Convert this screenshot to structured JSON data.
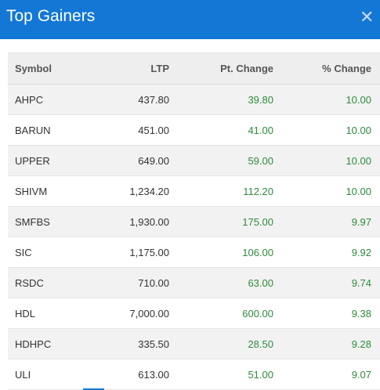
{
  "header": {
    "title": "Top Gainers",
    "close_icon": "close-icon",
    "background_color": "#1377d6"
  },
  "table": {
    "columns": [
      "Symbol",
      "LTP",
      "Pt. Change",
      "% Change"
    ],
    "positive_color": "#2e8b3c",
    "rows": [
      {
        "symbol": "AHPC",
        "ltp": "437.80",
        "pt_change": "39.80",
        "pct_change": "10.00"
      },
      {
        "symbol": "BARUN",
        "ltp": "451.00",
        "pt_change": "41.00",
        "pct_change": "10.00"
      },
      {
        "symbol": "UPPER",
        "ltp": "649.00",
        "pt_change": "59.00",
        "pct_change": "10.00"
      },
      {
        "symbol": "SHIVM",
        "ltp": "1,234.20",
        "pt_change": "112.20",
        "pct_change": "10.00"
      },
      {
        "symbol": "SMFBS",
        "ltp": "1,930.00",
        "pt_change": "175.00",
        "pct_change": "9.97"
      },
      {
        "symbol": "SIC",
        "ltp": "1,175.00",
        "pt_change": "106.00",
        "pct_change": "9.92"
      },
      {
        "symbol": "RSDC",
        "ltp": "710.00",
        "pt_change": "63.00",
        "pct_change": "9.74"
      },
      {
        "symbol": "HDL",
        "ltp": "7,000.00",
        "pt_change": "600.00",
        "pct_change": "9.38"
      },
      {
        "symbol": "HDHPC",
        "ltp": "335.50",
        "pt_change": "28.50",
        "pct_change": "9.28"
      },
      {
        "symbol": "ULI",
        "ltp": "613.00",
        "pt_change": "51.00",
        "pct_change": "9.07"
      }
    ]
  }
}
